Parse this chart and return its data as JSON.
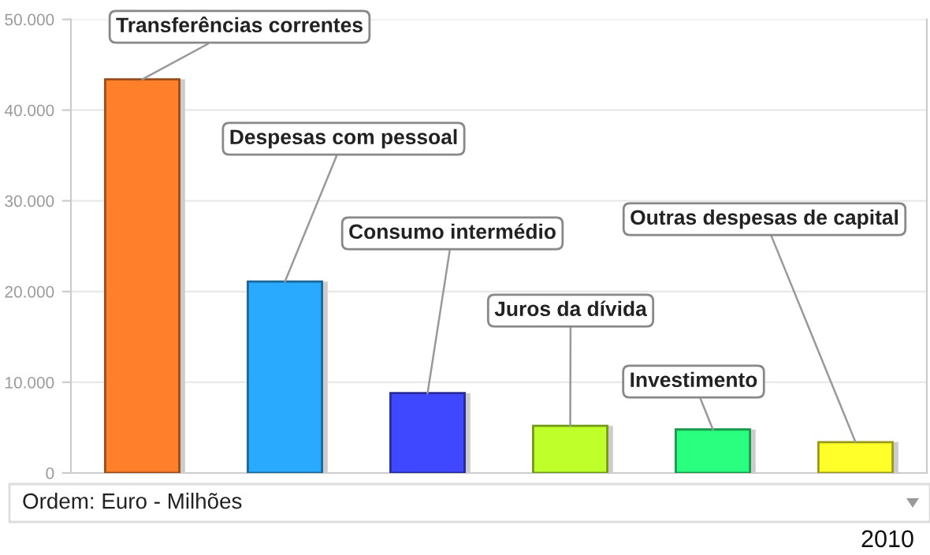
{
  "chart_data": {
    "type": "bar",
    "categories": [
      null,
      null,
      null,
      null,
      null,
      null
    ],
    "values": [
      43400,
      21100,
      8800,
      5200,
      4800,
      3400
    ],
    "colors": [
      "#ff7f2a",
      "#2aaaff",
      "#3f48ff",
      "#bfff2a",
      "#2aff7f",
      "#ffff2a"
    ],
    "ylim": [
      0,
      50000
    ],
    "yticks": [
      {
        "value": 0,
        "label": "0"
      },
      {
        "value": 10000,
        "label": "10.000"
      },
      {
        "value": 20000,
        "label": "20.000"
      },
      {
        "value": 30000,
        "label": "30.000"
      },
      {
        "value": 40000,
        "label": "40.000"
      },
      {
        "value": 50000,
        "label": "50.000"
      }
    ],
    "grid": "y",
    "legend": false,
    "annotations": [
      "Transferências correntes",
      "Despesas com pessoal",
      "Consumo intermédio",
      "Juros da dívida",
      "Investimento",
      "Outras despesas de capital",
      "Ordem: Euro - Milhões",
      "2010"
    ]
  }
}
